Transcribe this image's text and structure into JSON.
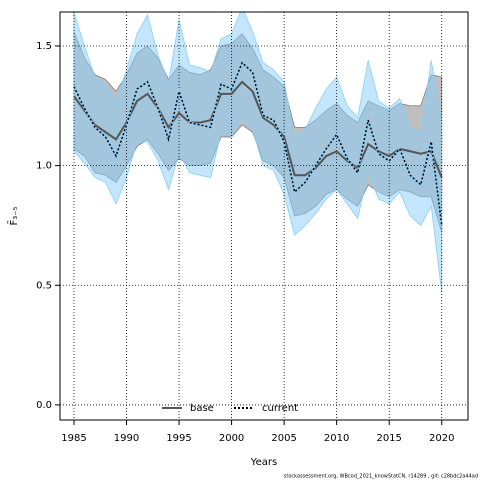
{
  "chart_data": {
    "type": "line",
    "xlabel": "Years",
    "ylabel": "F̄₃₋₅",
    "footer": "stockassessment.org, WBcod_2021_knowStatCN, r14289 , git: c28bdc2a44ad",
    "x": [
      1985,
      1986,
      1987,
      1988,
      1989,
      1990,
      1991,
      1992,
      1993,
      1994,
      1995,
      1996,
      1997,
      1998,
      1999,
      2000,
      2001,
      2002,
      2003,
      2004,
      2005,
      2006,
      2007,
      2008,
      2009,
      2010,
      2011,
      2012,
      2013,
      2014,
      2015,
      2016,
      2017,
      2018,
      2019,
      2020
    ],
    "series": [
      {
        "name": "base",
        "color": "#555555",
        "band_color": "#808080",
        "values": [
          1.29,
          1.23,
          1.17,
          1.14,
          1.11,
          1.18,
          1.27,
          1.3,
          1.24,
          1.16,
          1.22,
          1.18,
          1.18,
          1.19,
          1.3,
          1.3,
          1.35,
          1.31,
          1.2,
          1.17,
          1.12,
          0.96,
          0.96,
          0.99,
          1.04,
          1.06,
          1.02,
          0.99,
          1.09,
          1.06,
          1.04,
          1.07,
          1.06,
          1.05,
          1.06,
          0.95
        ],
        "upper": [
          1.56,
          1.45,
          1.38,
          1.36,
          1.31,
          1.38,
          1.47,
          1.5,
          1.45,
          1.36,
          1.42,
          1.39,
          1.38,
          1.4,
          1.5,
          1.51,
          1.55,
          1.49,
          1.4,
          1.37,
          1.33,
          1.16,
          1.16,
          1.19,
          1.23,
          1.26,
          1.21,
          1.18,
          1.27,
          1.25,
          1.23,
          1.26,
          1.25,
          1.25,
          1.38,
          1.37
        ],
        "lower": [
          1.07,
          1.04,
          0.97,
          0.96,
          0.93,
          1.0,
          1.08,
          1.11,
          1.05,
          0.98,
          1.03,
          1.0,
          1.0,
          1.01,
          1.12,
          1.12,
          1.17,
          1.14,
          1.02,
          1.0,
          0.95,
          0.79,
          0.8,
          0.83,
          0.88,
          0.9,
          0.86,
          0.83,
          0.92,
          0.89,
          0.87,
          0.9,
          0.89,
          0.87,
          0.87,
          0.72
        ]
      },
      {
        "name": "current",
        "color": "#000000",
        "band_color": "#87cefa",
        "dashed": true,
        "values": [
          1.33,
          1.24,
          1.16,
          1.12,
          1.04,
          1.17,
          1.32,
          1.35,
          1.24,
          1.11,
          1.31,
          1.18,
          1.17,
          1.16,
          1.34,
          1.32,
          1.43,
          1.39,
          1.21,
          1.19,
          1.1,
          0.89,
          0.93,
          1.0,
          1.07,
          1.13,
          1.03,
          0.97,
          1.19,
          1.05,
          1.02,
          1.07,
          0.96,
          0.92,
          1.1,
          0.75
        ],
        "upper": [
          1.64,
          1.5,
          1.37,
          1.34,
          1.27,
          1.4,
          1.55,
          1.63,
          1.46,
          1.35,
          1.61,
          1.42,
          1.41,
          1.39,
          1.53,
          1.55,
          1.66,
          1.56,
          1.43,
          1.4,
          1.35,
          1.12,
          1.15,
          1.24,
          1.32,
          1.37,
          1.25,
          1.2,
          1.44,
          1.27,
          1.24,
          1.28,
          1.16,
          1.14,
          1.44,
          1.18
        ],
        "lower": [
          1.06,
          1.01,
          0.95,
          0.93,
          0.84,
          0.95,
          1.1,
          1.1,
          1.02,
          0.9,
          1.05,
          0.97,
          0.96,
          0.95,
          1.14,
          1.12,
          1.2,
          1.15,
          1.0,
          0.98,
          0.88,
          0.71,
          0.75,
          0.8,
          0.86,
          0.9,
          0.84,
          0.78,
          0.97,
          0.86,
          0.84,
          0.89,
          0.79,
          0.75,
          0.83,
          0.47
        ]
      }
    ],
    "xlim": [
      1983.67,
      2022.5
    ],
    "xticks": [
      1985,
      1990,
      1995,
      2000,
      2005,
      2010,
      2015,
      2020
    ],
    "ylim": [
      -0.063,
      1.642
    ],
    "yticks": [
      {
        "value": 0,
        "label": "0.0"
      },
      0.5,
      {
        "value": 1,
        "label": "1.0"
      },
      1.5
    ],
    "grid": true,
    "legend": "bottom"
  }
}
